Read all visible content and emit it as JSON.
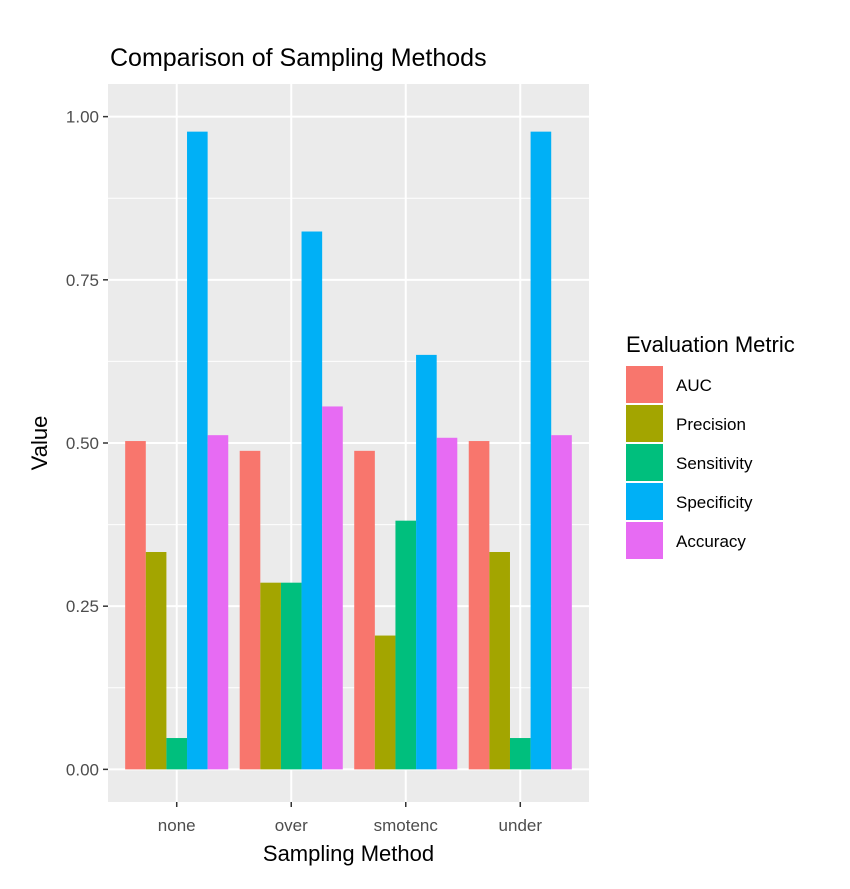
{
  "chart_data": {
    "type": "bar",
    "title": "Comparison of Sampling Methods",
    "xlabel": "Sampling Method",
    "ylabel": "Value",
    "ylim": [
      -0.05,
      1.05
    ],
    "yticks": [
      0.0,
      0.25,
      0.5,
      0.75,
      1.0
    ],
    "ytick_labels": [
      "0.00",
      "0.25",
      "0.50",
      "0.75",
      "1.00"
    ],
    "categories": [
      "none",
      "over",
      "smotenc",
      "under"
    ],
    "grid": true,
    "legend": {
      "title": "Evaluation Metric",
      "placement": "right"
    },
    "series": [
      {
        "name": "AUC",
        "color": "#F8766D",
        "values": [
          0.503,
          0.488,
          0.488,
          0.503
        ]
      },
      {
        "name": "Precision",
        "color": "#A3A500",
        "values": [
          0.333,
          0.286,
          0.205,
          0.333
        ]
      },
      {
        "name": "Sensitivity",
        "color": "#00BF7D",
        "values": [
          0.048,
          0.286,
          0.381,
          0.048
        ]
      },
      {
        "name": "Specificity",
        "color": "#00B0F6",
        "values": [
          0.977,
          0.824,
          0.635,
          0.977
        ]
      },
      {
        "name": "Accuracy",
        "color": "#E76BF3",
        "values": [
          0.512,
          0.556,
          0.508,
          0.512
        ]
      }
    ]
  }
}
